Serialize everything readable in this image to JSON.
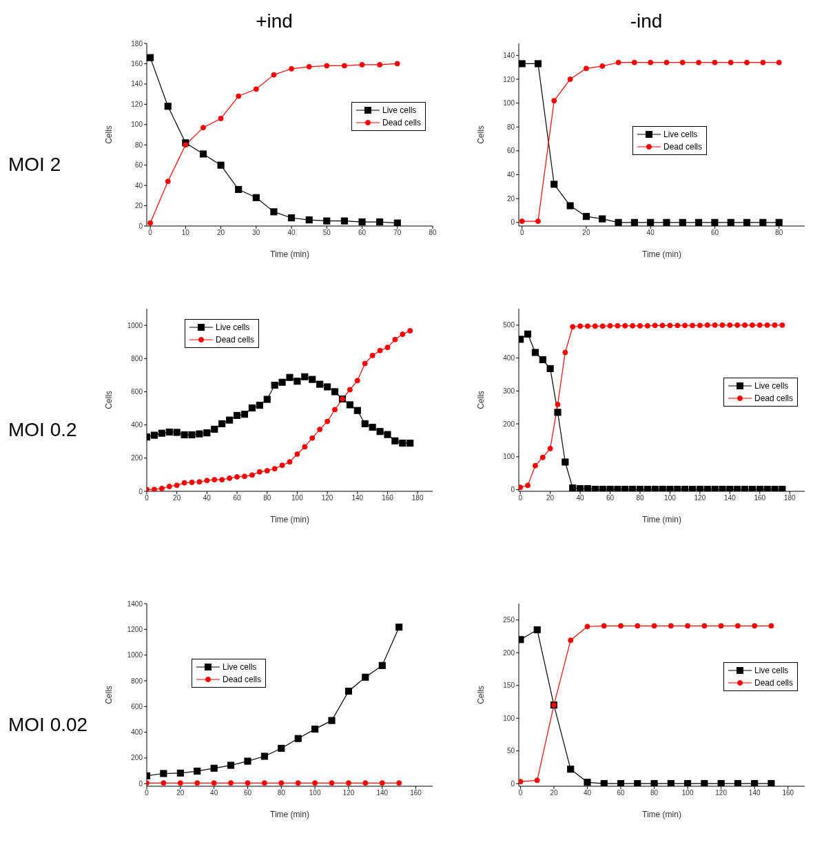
{
  "chart_data": [
    {
      "type": "line",
      "title": "+ind",
      "annotations": [
        "MOI 2"
      ],
      "xlabel": "Time (min)",
      "ylabel": "Cells",
      "x": [
        0,
        5,
        10,
        15,
        20,
        25,
        30,
        35,
        40,
        45,
        50,
        55,
        60,
        65,
        70
      ],
      "xlim": [
        -1,
        80
      ],
      "xticks": [
        0,
        10,
        20,
        30,
        40,
        50,
        60,
        70,
        80
      ],
      "ylim": [
        0,
        180
      ],
      "yticks": [
        0,
        20,
        40,
        60,
        80,
        100,
        120,
        140,
        160,
        180
      ],
      "legend": "top right",
      "grid": false,
      "series": [
        {
          "name": "Live cells",
          "color": "#000000",
          "marker": "square",
          "values": [
            166,
            118,
            82,
            71,
            60,
            36,
            28,
            14,
            8,
            6,
            5,
            5,
            4,
            4,
            3
          ]
        },
        {
          "name": "Dead cells",
          "color": "#ff0000",
          "marker": "circle",
          "values": [
            3,
            44,
            80,
            97,
            106,
            128,
            135,
            149,
            155,
            157,
            158,
            158,
            159,
            159,
            160
          ]
        }
      ]
    },
    {
      "type": "line",
      "title": "-ind",
      "xlabel": "Time (min)",
      "ylabel": "Cells",
      "x": [
        0,
        5,
        10,
        15,
        20,
        25,
        30,
        35,
        40,
        45,
        50,
        55,
        60,
        65,
        70,
        75,
        80
      ],
      "xlim": [
        -1,
        88
      ],
      "xticks": [
        0,
        20,
        40,
        60,
        80
      ],
      "ylim": [
        -3,
        150
      ],
      "yticks": [
        0,
        20,
        40,
        60,
        80,
        100,
        120,
        140
      ],
      "legend": "center",
      "grid": false,
      "series": [
        {
          "name": "Live cells",
          "color": "#000000",
          "marker": "square",
          "values": [
            133,
            133,
            32,
            14,
            5,
            3,
            0,
            0,
            0,
            0,
            0,
            0,
            0,
            0,
            0,
            0,
            0
          ]
        },
        {
          "name": "Dead cells",
          "color": "#ff0000",
          "marker": "circle",
          "values": [
            1,
            1,
            102,
            120,
            129,
            131,
            134,
            134,
            134,
            134,
            134,
            134,
            134,
            134,
            134,
            134,
            134
          ]
        }
      ]
    },
    {
      "type": "line",
      "annotations": [
        "MOI 0.2"
      ],
      "xlabel": "Time (min)",
      "ylabel": "Cells",
      "x": [
        0,
        5,
        10,
        15,
        20,
        25,
        30,
        35,
        40,
        45,
        50,
        55,
        60,
        65,
        70,
        75,
        80,
        85,
        90,
        95,
        100,
        105,
        110,
        115,
        120,
        125,
        130,
        135,
        140,
        145,
        150,
        155,
        160,
        165,
        170,
        175
      ],
      "xlim": [
        0,
        190
      ],
      "xticks": [
        0,
        20,
        40,
        60,
        80,
        100,
        120,
        140,
        160,
        180
      ],
      "ylim": [
        0,
        1100
      ],
      "yticks": [
        0,
        200,
        400,
        600,
        800,
        1000
      ],
      "legend": "top left",
      "grid": false,
      "series": [
        {
          "name": "Live cells",
          "color": "#000000",
          "marker": "square",
          "values": [
            327,
            338,
            350,
            357,
            355,
            340,
            340,
            346,
            352,
            374,
            407,
            429,
            457,
            464,
            502,
            518,
            554,
            639,
            657,
            686,
            663,
            690,
            674,
            645,
            629,
            600,
            556,
            521,
            487,
            407,
            386,
            360,
            342,
            304,
            290,
            290
          ]
        },
        {
          "name": "Dead cells",
          "color": "#ff0000",
          "marker": "circle",
          "values": [
            11,
            11,
            17,
            29,
            36,
            51,
            54,
            57,
            65,
            70,
            70,
            79,
            87,
            90,
            98,
            117,
            124,
            136,
            157,
            177,
            224,
            268,
            321,
            373,
            421,
            492,
            556,
            612,
            667,
            770,
            818,
            848,
            867,
            914,
            946,
            967
          ]
        }
      ]
    },
    {
      "type": "line",
      "xlabel": "Time (min)",
      "ylabel": "Cells",
      "x": [
        0,
        5,
        10,
        15,
        20,
        25,
        30,
        35,
        40,
        45,
        50,
        55,
        60,
        65,
        70,
        75,
        80,
        85,
        90,
        95,
        100,
        105,
        110,
        115,
        120,
        125,
        130,
        135,
        140,
        145,
        150,
        155,
        160,
        165,
        170,
        175
      ],
      "xlim": [
        -1,
        190
      ],
      "xticks": [
        0,
        20,
        40,
        60,
        80,
        100,
        120,
        140,
        160,
        180
      ],
      "ylim": [
        -5,
        550
      ],
      "yticks": [
        0,
        100,
        200,
        300,
        400,
        500
      ],
      "legend": "right",
      "grid": false,
      "series": [
        {
          "name": "Live cells",
          "color": "#000000",
          "marker": "square",
          "values": [
            457,
            473,
            417,
            395,
            368,
            235,
            84,
            5,
            3,
            3,
            1,
            1,
            1,
            1,
            1,
            1,
            1,
            1,
            1,
            1,
            1,
            1,
            1,
            1,
            1,
            1,
            1,
            1,
            1,
            1,
            1,
            1,
            1,
            1,
            1,
            1
          ]
        },
        {
          "name": "Dead cells",
          "color": "#ff0000",
          "marker": "circle",
          "values": [
            7,
            13,
            73,
            98,
            125,
            259,
            417,
            495,
            497,
            497,
            497,
            497,
            498,
            498,
            498,
            498,
            498,
            498,
            499,
            499,
            499,
            499,
            499,
            499,
            499,
            500,
            500,
            500,
            500,
            500,
            500,
            500,
            500,
            500,
            500,
            500
          ]
        }
      ]
    },
    {
      "type": "line",
      "annotations": [
        "MOI 0.02"
      ],
      "xlabel": "Time (min)",
      "ylabel": "Cells",
      "x": [
        0,
        10,
        20,
        30,
        40,
        50,
        60,
        70,
        80,
        90,
        100,
        110,
        120,
        130,
        140,
        150
      ],
      "xlim": [
        0,
        170
      ],
      "xticks": [
        0,
        20,
        40,
        60,
        80,
        100,
        120,
        140,
        160
      ],
      "ylim": [
        -20,
        1400
      ],
      "yticks": [
        0,
        200,
        400,
        600,
        800,
        1000,
        1200,
        1400
      ],
      "legend": "left",
      "grid": false,
      "series": [
        {
          "name": "Live cells",
          "color": "#000000",
          "marker": "square",
          "values": [
            61,
            79,
            82,
            97,
            120,
            143,
            175,
            213,
            275,
            351,
            424,
            491,
            719,
            828,
            919,
            1217
          ]
        },
        {
          "name": "Dead cells",
          "color": "#ff0000",
          "marker": "circle",
          "values": [
            5,
            5,
            5,
            5,
            5,
            5,
            5,
            5,
            5,
            5,
            5,
            5,
            5,
            5,
            5,
            5
          ]
        }
      ]
    },
    {
      "type": "line",
      "xlabel": "Time (min)",
      "ylabel": "Cells",
      "x": [
        0,
        10,
        20,
        30,
        40,
        50,
        60,
        70,
        80,
        90,
        100,
        110,
        120,
        130,
        140,
        150
      ],
      "xlim": [
        -1,
        170
      ],
      "xticks": [
        0,
        20,
        40,
        60,
        80,
        100,
        120,
        140,
        160
      ],
      "ylim": [
        -4,
        275
      ],
      "yticks": [
        0,
        50,
        100,
        150,
        200,
        250
      ],
      "legend": "top right",
      "grid": false,
      "series": [
        {
          "name": "Live cells",
          "color": "#000000",
          "marker": "square",
          "values": [
            220,
            235,
            120,
            22,
            2,
            0,
            0,
            0,
            0,
            0,
            0,
            0,
            0,
            0,
            0,
            0
          ]
        },
        {
          "name": "Dead cells",
          "color": "#ff0000",
          "marker": "circle",
          "values": [
            3,
            5,
            120,
            219,
            240,
            241,
            241,
            241,
            241,
            241,
            241,
            241,
            241,
            241,
            241,
            241
          ]
        }
      ]
    }
  ]
}
